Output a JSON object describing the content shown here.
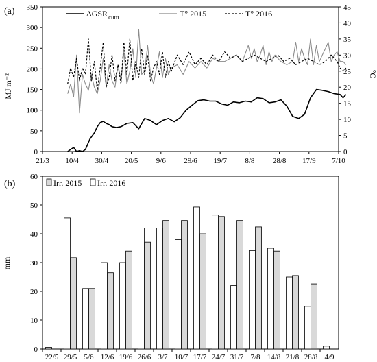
{
  "chart_data": [
    {
      "panel_label": "(a)",
      "type": "line",
      "ylabel_left": "MJ m⁻²",
      "ylabel_right": "°C",
      "ylim_left": [
        0,
        350
      ],
      "ylim_right": [
        0,
        45
      ],
      "yticks_left": [
        0,
        50,
        100,
        150,
        200,
        250,
        300,
        350
      ],
      "yticks_right": [
        0,
        5,
        10,
        15,
        20,
        25,
        30,
        35,
        40,
        45
      ],
      "x_tick_labels": [
        "21/3",
        "10/4",
        "30/4",
        "20/5",
        "9/6",
        "29/6",
        "19/7",
        "8/8",
        "28/8",
        "17/9",
        "7/10"
      ],
      "legend_placement": "top",
      "legend": [
        {
          "text": "ΔGSR",
          "sub": "cum",
          "style": "solid-thick"
        },
        {
          "text": "T° 2015",
          "sub": "",
          "style": "solid-gray"
        },
        {
          "text": "T° 2016",
          "sub": "",
          "style": "dashed"
        }
      ],
      "series": [
        {
          "key": "gsr",
          "axis": "left",
          "color": "#000000",
          "x_days": [
            0,
            4,
            6,
            8,
            10,
            12,
            15,
            18,
            20,
            22,
            24,
            26,
            28,
            30,
            33,
            36,
            40,
            44,
            48,
            52,
            56,
            60,
            64,
            68,
            72,
            76,
            80,
            84,
            88,
            92,
            96,
            100,
            104,
            108,
            112,
            116,
            120,
            124,
            128,
            132,
            136,
            140,
            144,
            148,
            152,
            156,
            160,
            164,
            168,
            172,
            176,
            180,
            184,
            186,
            188
          ],
          "values": [
            0,
            10,
            0,
            2,
            0,
            5,
            30,
            45,
            60,
            70,
            73,
            68,
            65,
            60,
            58,
            60,
            68,
            70,
            55,
            80,
            75,
            65,
            75,
            80,
            72,
            82,
            100,
            112,
            123,
            125,
            122,
            122,
            115,
            112,
            120,
            118,
            122,
            120,
            130,
            128,
            118,
            120,
            125,
            110,
            85,
            80,
            90,
            130,
            150,
            148,
            145,
            140,
            138,
            130,
            138
          ]
        },
        {
          "key": "t2015",
          "axis": "right",
          "color": "#8a8a8a",
          "x_days": [
            0,
            2,
            4,
            6,
            8,
            10,
            12,
            14,
            16,
            18,
            20,
            22,
            24,
            26,
            28,
            30,
            32,
            34,
            36,
            38,
            40,
            42,
            44,
            46,
            48,
            50,
            52,
            54,
            56,
            58,
            60,
            62,
            64,
            66,
            68,
            70,
            74,
            78,
            82,
            86,
            90,
            94,
            98,
            102,
            106,
            110,
            114,
            118,
            122,
            124,
            126,
            128,
            130,
            132,
            134,
            136,
            138,
            140,
            144,
            148,
            152,
            154,
            156,
            158,
            160,
            162,
            164,
            166,
            168,
            170,
            172,
            174,
            176,
            178,
            180,
            182,
            184,
            186,
            188
          ],
          "values": [
            18,
            21,
            17,
            30,
            12,
            24,
            21,
            19,
            24,
            20,
            18,
            22,
            29,
            20,
            27,
            22,
            20,
            27,
            22,
            31,
            21,
            25,
            32,
            23,
            38,
            24,
            25,
            33,
            24,
            21,
            26,
            31,
            23,
            29,
            24,
            26,
            27,
            24,
            28,
            26,
            28,
            26,
            29,
            28,
            28,
            29,
            30,
            28,
            33,
            29,
            32,
            28,
            30,
            33,
            27,
            31,
            28,
            30,
            28,
            27,
            28,
            34,
            28,
            32,
            29,
            27,
            35,
            27,
            33,
            28,
            30,
            32,
            34,
            28,
            30,
            31,
            28,
            28,
            27
          ]
        },
        {
          "key": "t2016",
          "axis": "right",
          "color": "#000000",
          "x_days": [
            0,
            2,
            4,
            6,
            8,
            10,
            12,
            14,
            16,
            18,
            20,
            22,
            24,
            26,
            28,
            30,
            32,
            34,
            36,
            38,
            40,
            42,
            44,
            46,
            48,
            50,
            52,
            54,
            56,
            58,
            60,
            62,
            64,
            66,
            68,
            70,
            74,
            78,
            82,
            86,
            90,
            94,
            98,
            102,
            106,
            110,
            114,
            118,
            122,
            126,
            130,
            134,
            138,
            142,
            146,
            150,
            154,
            158,
            162,
            166,
            170,
            174,
            178,
            182,
            184,
            186,
            188
          ],
          "values": [
            21,
            26,
            23,
            29,
            22,
            26,
            24,
            35,
            22,
            28,
            19,
            26,
            34,
            20,
            23,
            30,
            22,
            27,
            21,
            34,
            24,
            35,
            22,
            28,
            23,
            32,
            24,
            30,
            22,
            26,
            28,
            24,
            31,
            23,
            28,
            25,
            30,
            27,
            31,
            27,
            29,
            27,
            30,
            28,
            31,
            29,
            30,
            28,
            29,
            30,
            29,
            28,
            29,
            30,
            28,
            29,
            27,
            28,
            29,
            28,
            27,
            28,
            30,
            28,
            26,
            25,
            26
          ]
        }
      ]
    },
    {
      "panel_label": "(b)",
      "type": "bar",
      "ylabel": "mm",
      "ylim": [
        0,
        60
      ],
      "yticks": [
        0,
        10,
        20,
        30,
        40,
        50,
        60
      ],
      "categories": [
        "22/5",
        "29/5",
        "5/6",
        "12/6",
        "19/6",
        "26/6",
        "3/7",
        "10/7",
        "17/7",
        "24/7",
        "31/7",
        "7/8",
        "14/8",
        "21/8",
        "28/8",
        "4/9"
      ],
      "legend_placement": "top-left",
      "series": [
        {
          "name": "Irr. 2015",
          "color": "#d9d9d9",
          "values": [
            0,
            31.7,
            21,
            26.5,
            34,
            37.1,
            44.6,
            44.6,
            40,
            46,
            44.6,
            42.4,
            34,
            25.5,
            22.6,
            0
          ]
        },
        {
          "name": "Irr. 2016",
          "color": "#ffffff",
          "values": [
            0.6,
            45.5,
            21,
            30,
            30,
            42,
            42,
            38,
            49.3,
            46.5,
            22,
            34.2,
            35,
            25,
            14.8,
            1
          ]
        }
      ]
    }
  ]
}
